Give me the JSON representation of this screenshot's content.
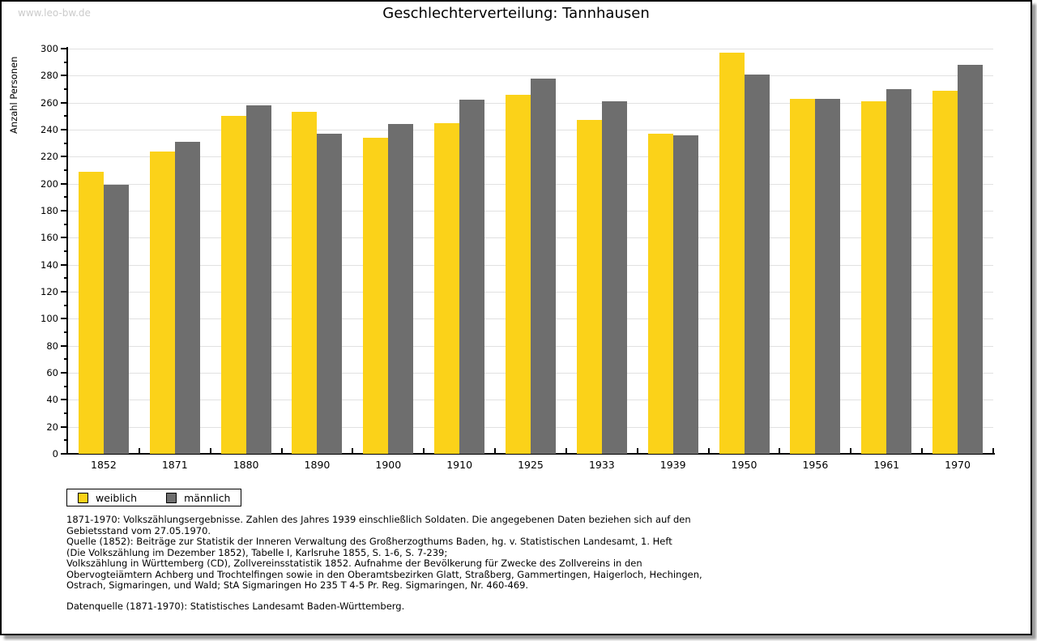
{
  "watermark": "www.leo-bw.de",
  "title": "Geschlechterverteilung: Tannhausen",
  "colors": {
    "female": "#fbd219",
    "male": "#6e6e6e",
    "grid": "#e1e1e1",
    "axis": "#000000",
    "watermark": "#cbcbcb"
  },
  "chart_data": {
    "type": "bar",
    "title": "Geschlechterverteilung: Tannhausen",
    "xlabel": "",
    "ylabel": "Anzahl Personen",
    "ylim": [
      0,
      300
    ],
    "ytick_major": 20,
    "ytick_minor": 10,
    "grid": true,
    "legend_position": "bottom-left",
    "categories": [
      "1852",
      "1871",
      "1880",
      "1890",
      "1900",
      "1910",
      "1925",
      "1933",
      "1939",
      "1950",
      "1956",
      "1961",
      "1970"
    ],
    "series": [
      {
        "name": "weiblich",
        "color": "#fbd219",
        "values": [
          209,
          224,
          250,
          253,
          234,
          245,
          266,
          247,
          237,
          297,
          263,
          261,
          269
        ]
      },
      {
        "name": "männlich",
        "color": "#6e6e6e",
        "values": [
          199,
          231,
          258,
          237,
          244,
          262,
          278,
          261,
          236,
          281,
          263,
          270,
          288
        ]
      }
    ]
  },
  "footnotes": [
    "1871-1970: Volkszählungsergebnisse. Zahlen des Jahres 1939 einschließlich Soldaten. Die angegebenen Daten beziehen sich auf den",
    "Gebietsstand vom 27.05.1970.",
    "Quelle (1852): Beiträge zur Statistik der Inneren Verwaltung des Großherzogthums Baden, hg. v. Statistischen Landesamt, 1. Heft",
    "(Die Volkszählung im Dezember 1852), Tabelle I, Karlsruhe 1855, S. 1-6, S. 7-239;",
    "Volkszählung in Württemberg (CD), Zollvereinsstatistik 1852. Aufnahme der Bevölkerung für Zwecke des Zollvereins in den",
    "Obervogteiämtern Achberg und Trochtelfingen sowie in den Oberamtsbezirken Glatt, Straßberg, Gammertingen, Haigerloch, Hechingen,",
    "Ostrach, Sigmaringen, und Wald; StA Sigmaringen Ho 235 T 4-5 Pr. Reg. Sigmaringen, Nr. 460-469."
  ],
  "datasource": "Datenquelle (1871-1970): Statistisches Landesamt Baden-Württemberg."
}
